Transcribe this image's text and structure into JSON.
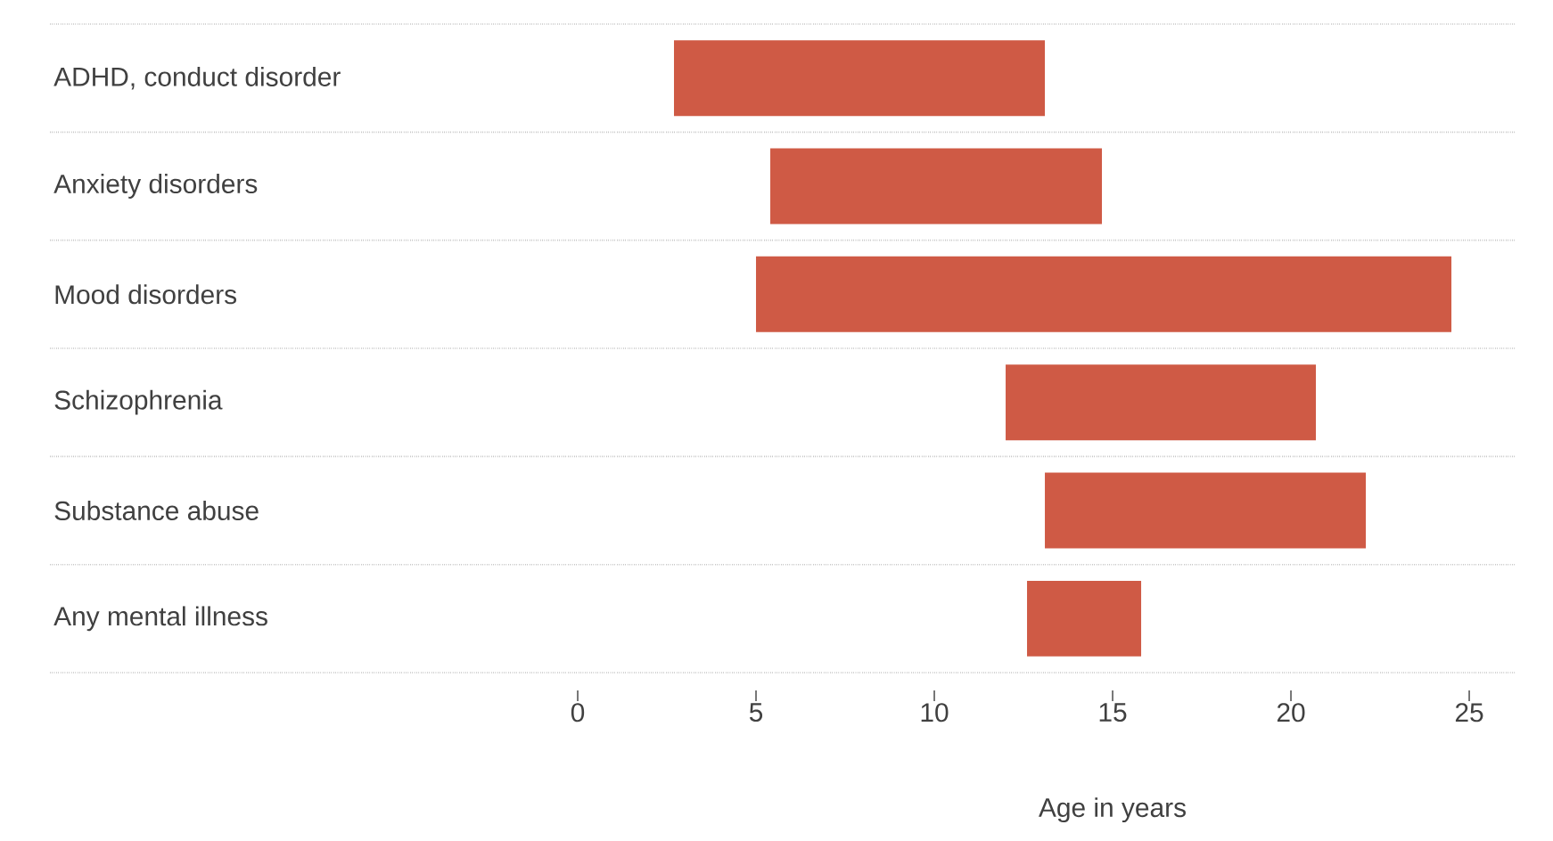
{
  "chart_data": {
    "type": "bar",
    "orientation": "horizontal",
    "categories": [
      "ADHD, conduct disorder",
      "Anxiety disorders",
      "Mood disorders",
      "Schizophrenia",
      "Substance abuse",
      "Any mental illness"
    ],
    "base": [
      2.7,
      5.4,
      5,
      12,
      13.1,
      12.6
    ],
    "values": [
      10.4,
      9.3,
      19.5,
      8.7,
      9,
      3.2
    ],
    "color": "#cf5a45",
    "xlim": [
      -14.8,
      26.3
    ],
    "xticks": [
      0,
      5,
      10,
      15,
      20,
      25
    ],
    "xlabel": "Age in years",
    "grid": "y"
  }
}
